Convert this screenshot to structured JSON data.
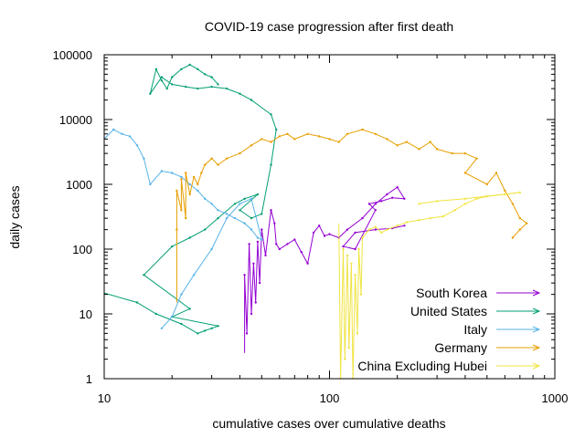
{
  "chart_data": {
    "type": "line",
    "title": "COVID-19 case progression after first death",
    "xlabel": "cumulative cases over cumulative deaths",
    "ylabel": "daily cases",
    "x_scale": "log",
    "y_scale": "log",
    "xlim": [
      10,
      1000
    ],
    "ylim": [
      1,
      100000
    ],
    "x_ticks": [
      {
        "value": 10,
        "label": "10"
      },
      {
        "value": 100,
        "label": "100"
      },
      {
        "value": 1000,
        "label": "1000"
      }
    ],
    "y_ticks": [
      {
        "value": 1,
        "label": "1"
      },
      {
        "value": 10,
        "label": "10"
      },
      {
        "value": 100,
        "label": "100"
      },
      {
        "value": 1000,
        "label": "1000"
      },
      {
        "value": 10000,
        "label": "10000"
      },
      {
        "value": 100000,
        "label": "100000"
      }
    ],
    "grid": false,
    "legend_position": "bottom-right",
    "series": [
      {
        "name": "South Korea",
        "color": "#9400d3",
        "points": [
          [
            42,
            2.5
          ],
          [
            42,
            40
          ],
          [
            43,
            5
          ],
          [
            44,
            120
          ],
          [
            45,
            10
          ],
          [
            46,
            60
          ],
          [
            47,
            15
          ],
          [
            48,
            130
          ],
          [
            49,
            30
          ],
          [
            50,
            200
          ],
          [
            52,
            80
          ],
          [
            55,
            400
          ],
          [
            57,
            250
          ],
          [
            58,
            120
          ],
          [
            60,
            100
          ],
          [
            65,
            120
          ],
          [
            70,
            140
          ],
          [
            75,
            90
          ],
          [
            80,
            60
          ],
          [
            85,
            180
          ],
          [
            90,
            230
          ],
          [
            95,
            160
          ],
          [
            100,
            170
          ],
          [
            110,
            150
          ],
          [
            120,
            200
          ],
          [
            140,
            300
          ],
          [
            160,
            500
          ],
          [
            180,
            700
          ],
          [
            200,
            900
          ],
          [
            215,
            600
          ],
          [
            190,
            620
          ],
          [
            170,
            550
          ],
          [
            150,
            500
          ],
          [
            160,
            400
          ],
          [
            130,
            100
          ],
          [
            115,
            110
          ],
          [
            130,
            180
          ],
          [
            160,
            200
          ],
          [
            190,
            210
          ],
          [
            215,
            230
          ]
        ]
      },
      {
        "name": "United States",
        "color": "#009e73",
        "points": [
          [
            10,
            21
          ],
          [
            14,
            15
          ],
          [
            17,
            10
          ],
          [
            22,
            7
          ],
          [
            26,
            5
          ],
          [
            28,
            5.5
          ],
          [
            30,
            6
          ],
          [
            32,
            6.5
          ],
          [
            20,
            9
          ],
          [
            24,
            12
          ],
          [
            15,
            40
          ],
          [
            20,
            110
          ],
          [
            24,
            150
          ],
          [
            28,
            200
          ],
          [
            32,
            300
          ],
          [
            38,
            500
          ],
          [
            42,
            600
          ],
          [
            48,
            700
          ],
          [
            40,
            400
          ],
          [
            45,
            300
          ],
          [
            50,
            350
          ],
          [
            55,
            2000
          ],
          [
            58,
            7000
          ],
          [
            55,
            12000
          ],
          [
            45,
            20000
          ],
          [
            40,
            25000
          ],
          [
            35,
            30000
          ],
          [
            30,
            32000
          ],
          [
            26,
            30000
          ],
          [
            23,
            32000
          ],
          [
            20,
            35000
          ],
          [
            18,
            45000
          ],
          [
            16,
            25000
          ],
          [
            17,
            60000
          ],
          [
            18,
            40000
          ],
          [
            19,
            30000
          ],
          [
            20,
            45000
          ],
          [
            22,
            60000
          ],
          [
            24,
            70000
          ],
          [
            26,
            60000
          ],
          [
            28,
            50000
          ],
          [
            30,
            45000
          ],
          [
            32,
            35000
          ]
        ]
      },
      {
        "name": "Italy",
        "color": "#56b4e9",
        "points": [
          [
            10,
            5000
          ],
          [
            11,
            7000
          ],
          [
            12,
            6000
          ],
          [
            13,
            5500
          ],
          [
            14,
            4000
          ],
          [
            15,
            2500
          ],
          [
            16,
            1000
          ],
          [
            18,
            1600
          ],
          [
            20,
            1500
          ],
          [
            22,
            1300
          ],
          [
            24,
            1000
          ],
          [
            26,
            800
          ],
          [
            28,
            600
          ],
          [
            30,
            500
          ],
          [
            32,
            400
          ],
          [
            35,
            350
          ],
          [
            38,
            300
          ],
          [
            42,
            250
          ],
          [
            45,
            200
          ],
          [
            48,
            150
          ],
          [
            50,
            140
          ],
          [
            45,
            600
          ],
          [
            40,
            500
          ],
          [
            35,
            300
          ],
          [
            30,
            100
          ],
          [
            25,
            40
          ],
          [
            22,
            20
          ],
          [
            20,
            9
          ],
          [
            18,
            6
          ]
        ]
      },
      {
        "name": "Germany",
        "color": "#e69f00",
        "points": [
          [
            21,
            15
          ],
          [
            21,
            200
          ],
          [
            21,
            800
          ],
          [
            22,
            400
          ],
          [
            22,
            1200
          ],
          [
            23,
            300
          ],
          [
            23,
            1500
          ],
          [
            24,
            700
          ],
          [
            25,
            1300
          ],
          [
            26,
            1000
          ],
          [
            27,
            1500
          ],
          [
            28,
            2000
          ],
          [
            30,
            2500
          ],
          [
            32,
            2000
          ],
          [
            35,
            2500
          ],
          [
            40,
            3000
          ],
          [
            45,
            4000
          ],
          [
            50,
            5000
          ],
          [
            55,
            4500
          ],
          [
            60,
            5500
          ],
          [
            65,
            6000
          ],
          [
            70,
            5000
          ],
          [
            80,
            6000
          ],
          [
            90,
            5500
          ],
          [
            100,
            5000
          ],
          [
            110,
            4500
          ],
          [
            120,
            6000
          ],
          [
            140,
            7000
          ],
          [
            160,
            6000
          ],
          [
            180,
            5000
          ],
          [
            200,
            4000
          ],
          [
            220,
            4500
          ],
          [
            250,
            3500
          ],
          [
            280,
            4500
          ],
          [
            300,
            3500
          ],
          [
            350,
            3000
          ],
          [
            400,
            3000
          ],
          [
            450,
            2500
          ],
          [
            400,
            1500
          ],
          [
            500,
            1000
          ],
          [
            550,
            1500
          ],
          [
            600,
            800
          ],
          [
            650,
            500
          ],
          [
            700,
            300
          ],
          [
            750,
            250
          ],
          [
            700,
            200
          ],
          [
            650,
            150
          ]
        ]
      },
      {
        "name": "China Excluding Hubei",
        "color": "#f0e442",
        "points": [
          [
            110,
            250
          ],
          [
            112,
            1
          ],
          [
            115,
            100
          ],
          [
            117,
            2
          ],
          [
            120,
            80
          ],
          [
            122,
            3
          ],
          [
            125,
            60
          ],
          [
            127,
            1
          ],
          [
            130,
            40
          ],
          [
            133,
            5
          ],
          [
            135,
            100
          ],
          [
            138,
            20
          ],
          [
            140,
            150
          ],
          [
            150,
            200
          ],
          [
            160,
            220
          ],
          [
            170,
            180
          ],
          [
            180,
            200
          ],
          [
            200,
            230
          ],
          [
            220,
            260
          ],
          [
            250,
            280
          ],
          [
            280,
            300
          ],
          [
            320,
            320
          ],
          [
            360,
            400
          ],
          [
            400,
            500
          ],
          [
            450,
            600
          ],
          [
            500,
            650
          ],
          [
            600,
            700
          ],
          [
            700,
            750
          ],
          [
            400,
            600
          ],
          [
            300,
            550
          ],
          [
            250,
            500
          ]
        ]
      }
    ]
  }
}
